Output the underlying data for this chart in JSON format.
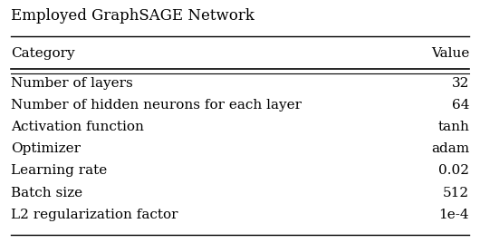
{
  "title": "Employed GraphSAGE Network",
  "col_labels": [
    "Category",
    "Value"
  ],
  "rows": [
    [
      "Number of layers",
      "32"
    ],
    [
      "Number of hidden neurons for each layer",
      "64"
    ],
    [
      "Activation function",
      "tanh"
    ],
    [
      "Optimizer",
      "adam"
    ],
    [
      "Learning rate",
      "0.02"
    ],
    [
      "Batch size",
      "512"
    ],
    [
      "L2 regularization factor",
      "1e-4"
    ]
  ],
  "font_size": 11,
  "title_font_size": 12,
  "bg_color": "#ffffff",
  "text_color": "#000000",
  "line_color": "#000000"
}
